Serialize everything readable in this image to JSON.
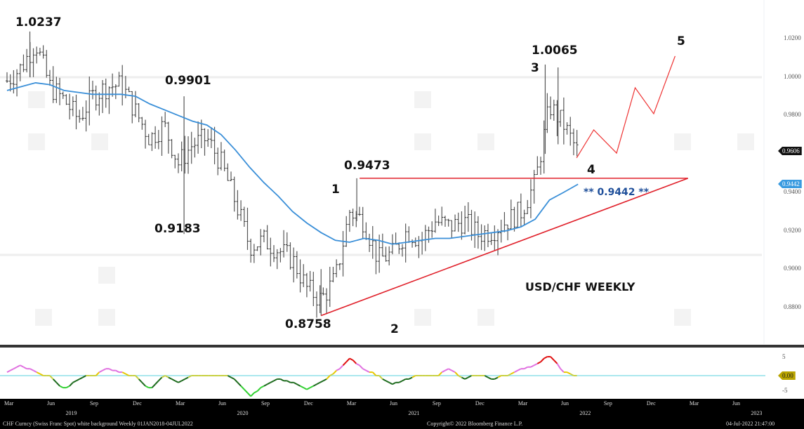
{
  "chart_data": {
    "type": "ohlc-bar",
    "title": "USD/CHF WEEKLY",
    "x_months": [
      "Mar",
      "Jun",
      "Sep",
      "Dec",
      "Mar",
      "Jun",
      "Sep",
      "Dec",
      "Mar",
      "Jun",
      "Sep",
      "Dec",
      "Mar",
      "Jun",
      "Sep",
      "Dec",
      "Mar",
      "Jun"
    ],
    "x_years": [
      "2019",
      "2020",
      "2021",
      "2022",
      "2023"
    ],
    "y_ticks": [
      "1.0200",
      "1.0000",
      "0.9800",
      "0.9400",
      "0.9200",
      "0.9000",
      "0.8800"
    ],
    "y_tick_values": [
      1.02,
      1.0,
      0.98,
      0.94,
      0.92,
      0.9,
      0.88
    ],
    "ylim": [
      0.87,
      1.03
    ],
    "start_month": "Mar 2019",
    "monthly_close": [
      0.998,
      1.005,
      1.018,
      0.995,
      0.988,
      0.978,
      0.99,
      0.995,
      0.996,
      0.982,
      0.968,
      0.975,
      0.955,
      0.965,
      0.968,
      0.955,
      0.935,
      0.912,
      0.915,
      0.91,
      0.905,
      0.89,
      0.884,
      0.895,
      0.93,
      0.925,
      0.905,
      0.908,
      0.92,
      0.915,
      0.925,
      0.922,
      0.925,
      0.918,
      0.92,
      0.925,
      0.93,
      0.945,
      0.985,
      0.975,
      0.9606
    ],
    "moving_average": [
      0.993,
      0.995,
      0.997,
      0.996,
      0.993,
      0.992,
      0.991,
      0.991,
      0.991,
      0.99,
      0.986,
      0.983,
      0.98,
      0.977,
      0.975,
      0.97,
      0.962,
      0.953,
      0.945,
      0.938,
      0.93,
      0.924,
      0.919,
      0.915,
      0.914,
      0.916,
      0.915,
      0.913,
      0.914,
      0.915,
      0.916,
      0.916,
      0.917,
      0.918,
      0.919,
      0.92,
      0.922,
      0.926,
      0.936,
      0.94,
      0.9442
    ],
    "key_levels": {
      "high_2019": "1.0237",
      "high_2020": "0.9901",
      "low_2020": "0.9183",
      "low_2021": "0.8758",
      "wave1": "0.9473",
      "wave3": "1.0065",
      "current": "0.9606",
      "ma_value": "0.9442"
    },
    "triangle": {
      "top": {
        "from": [
          24.7,
          0.9473
        ],
        "to": [
          47.7,
          0.9473
        ]
      },
      "bottom": {
        "from": [
          22,
          0.8758
        ],
        "to": [
          47.7,
          0.9473
        ]
      }
    },
    "forecast_path": [
      [
        39.9,
        0.9579
      ],
      [
        41.1,
        0.9725
      ],
      [
        42.7,
        0.9604
      ],
      [
        44.0,
        0.9944
      ],
      [
        45.3,
        0.9809
      ],
      [
        46.8,
        1.0109
      ]
    ],
    "oscillator": {
      "ylim": [
        -6,
        6
      ],
      "y_ticks": [
        "5",
        "0.00",
        "-5"
      ],
      "monthly": [
        1,
        3,
        1,
        0,
        -4,
        -1,
        0,
        2,
        1,
        0,
        -4,
        0,
        -2,
        0,
        0,
        0,
        -1,
        -6,
        -3,
        -1,
        -2,
        -4,
        -2,
        1,
        5,
        2,
        0,
        -2.5,
        -1,
        0,
        0,
        2,
        -1,
        0,
        -1,
        0,
        2,
        3,
        6,
        1,
        0
      ]
    }
  },
  "annotations": {
    "high_2019": "1.0237",
    "high_2020": "0.9901",
    "low_2020": "0.9183",
    "low_2021": "0.8758",
    "wave1_price": "0.9473",
    "wave1": "1",
    "wave2": "2",
    "wave3_price": "1.0065",
    "wave3": "3",
    "wave4": "4",
    "wave5": "5",
    "ma_label": "** 0.9442 **",
    "title": "USD/CHF WEEKLY"
  },
  "tags": {
    "last_price": "0.9606",
    "ma": "0.9442",
    "osc": "0.00"
  },
  "osc_ticks": {
    "top": "5",
    "bottom": "-5"
  },
  "footer": {
    "left": "CHF Curncy (Swiss Franc Spot) white background  Weekly 01JAN2018-04JUL2022",
    "center": "Copyright© 2022 Bloomberg Finance L.P.",
    "right": "04-Jul-2022 21:47:00"
  },
  "colors": {
    "ma": "#3a8fd8",
    "triangle": "#e0202a",
    "bars": "#444444",
    "osc_zero": "#8fe0e8"
  }
}
